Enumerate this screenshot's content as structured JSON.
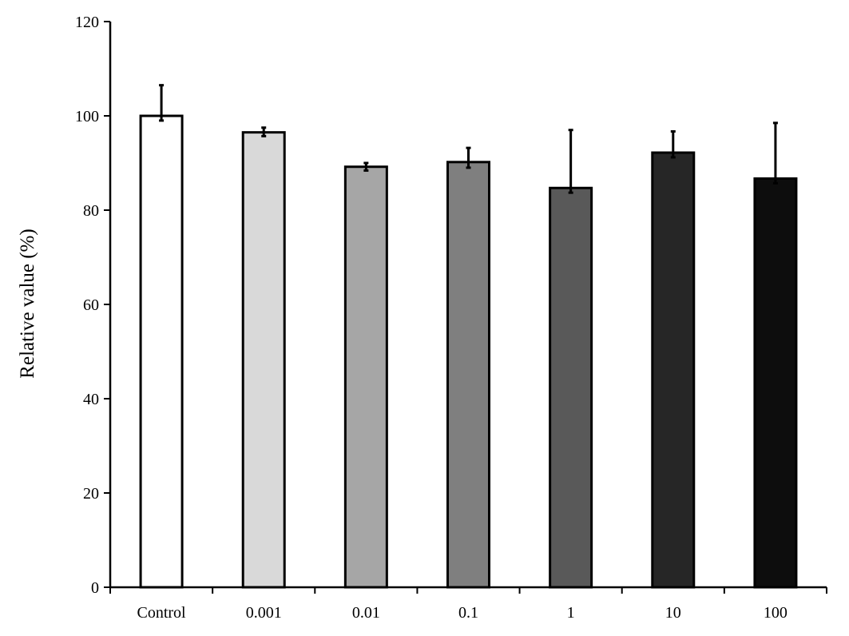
{
  "chart_data": {
    "type": "bar",
    "title": "",
    "xlabel": "",
    "ylabel": "Relative value (%)",
    "ylim": [
      0,
      120
    ],
    "yticks": [
      0,
      20,
      40,
      60,
      80,
      100,
      120
    ],
    "categories": [
      "Control",
      "0.001",
      "0.01",
      "0.1",
      "1",
      "10",
      "100"
    ],
    "values": [
      100,
      96.5,
      89.2,
      90.2,
      84.7,
      92.2,
      86.7
    ],
    "error_upper": [
      6.5,
      1.0,
      0.8,
      3.0,
      12.3,
      4.5,
      11.8
    ],
    "error_lower": [
      1.0,
      0.8,
      0.8,
      1.2,
      1.0,
      1.0,
      1.0
    ],
    "bar_colors": [
      "#ffffff",
      "#d9d9d9",
      "#a6a6a6",
      "#7f7f7f",
      "#595959",
      "#262626",
      "#0d0d0d"
    ],
    "grid": false,
    "legend": "none"
  }
}
